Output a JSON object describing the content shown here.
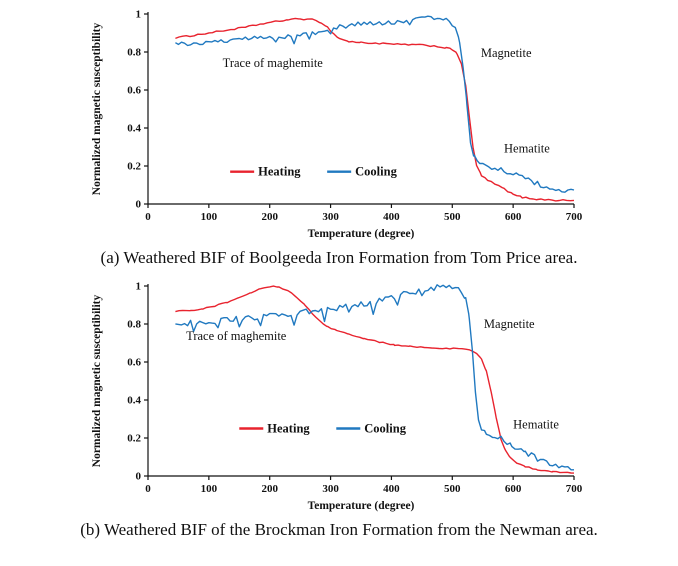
{
  "colors": {
    "heating": "#e8232e",
    "cooling": "#2079c0",
    "axis": "#111111"
  },
  "chart_data": [
    {
      "type": "line",
      "panel": "a",
      "caption": "(a) Weathered BIF of Boolgeeda Iron Formation from Tom Price area.",
      "xlabel": "Temperature (degree)",
      "ylabel": "Normalized magnetic susceptibility",
      "xlim": [
        0,
        700
      ],
      "ylim": [
        0,
        1
      ],
      "xticks": [
        0,
        100,
        200,
        300,
        400,
        500,
        600,
        700
      ],
      "yticks": [
        0,
        0.2,
        0.4,
        0.6,
        0.8,
        1
      ],
      "legend": {
        "x": 135,
        "y": 0.17,
        "items": [
          {
            "label": "Heating",
            "color": "#e8232e"
          },
          {
            "label": "Cooling",
            "color": "#2079c0"
          }
        ]
      },
      "annotations": [
        {
          "text": "Trace of maghemite",
          "x": 205,
          "y": 0.72,
          "anchor": "middle"
        },
        {
          "text": "Magnetite",
          "x": 547,
          "y": 0.775,
          "anchor": "start"
        },
        {
          "text": "Hematite",
          "x": 585,
          "y": 0.27,
          "anchor": "start"
        }
      ],
      "series": [
        {
          "name": "Heating",
          "color": "#e8232e",
          "jitter": 0.004,
          "sample_step": 6,
          "points": [
            [
              45,
              0.875
            ],
            [
              70,
              0.885
            ],
            [
              100,
              0.9
            ],
            [
              130,
              0.915
            ],
            [
              160,
              0.93
            ],
            [
              190,
              0.95
            ],
            [
              210,
              0.96
            ],
            [
              230,
              0.97
            ],
            [
              250,
              0.975
            ],
            [
              270,
              0.97
            ],
            [
              285,
              0.955
            ],
            [
              295,
              0.93
            ],
            [
              305,
              0.895
            ],
            [
              315,
              0.87
            ],
            [
              330,
              0.855
            ],
            [
              350,
              0.85
            ],
            [
              380,
              0.845
            ],
            [
              410,
              0.84
            ],
            [
              440,
              0.838
            ],
            [
              470,
              0.832
            ],
            [
              490,
              0.822
            ],
            [
              500,
              0.812
            ],
            [
              508,
              0.79
            ],
            [
              515,
              0.74
            ],
            [
              522,
              0.62
            ],
            [
              528,
              0.46
            ],
            [
              534,
              0.3
            ],
            [
              540,
              0.2
            ],
            [
              548,
              0.15
            ],
            [
              558,
              0.125
            ],
            [
              570,
              0.105
            ],
            [
              585,
              0.08
            ],
            [
              600,
              0.05
            ],
            [
              615,
              0.035
            ],
            [
              640,
              0.025
            ],
            [
              670,
              0.02
            ],
            [
              700,
              0.018
            ]
          ]
        },
        {
          "name": "Cooling",
          "color": "#2079c0",
          "jitter": 0.013,
          "sample_step": 5,
          "spikes": [
            [
              210,
              -0.03
            ],
            [
              240,
              -0.04
            ],
            [
              265,
              -0.03
            ],
            [
              300,
              -0.03
            ],
            [
              430,
              -0.025
            ]
          ],
          "points": [
            [
              45,
              0.84
            ],
            [
              80,
              0.848
            ],
            [
              120,
              0.856
            ],
            [
              160,
              0.866
            ],
            [
              200,
              0.878
            ],
            [
              240,
              0.888
            ],
            [
              270,
              0.9
            ],
            [
              290,
              0.915
            ],
            [
              310,
              0.93
            ],
            [
              340,
              0.945
            ],
            [
              370,
              0.952
            ],
            [
              400,
              0.958
            ],
            [
              420,
              0.962
            ],
            [
              440,
              0.975
            ],
            [
              455,
              0.985
            ],
            [
              470,
              0.982
            ],
            [
              485,
              0.972
            ],
            [
              495,
              0.962
            ],
            [
              505,
              0.935
            ],
            [
              512,
              0.86
            ],
            [
              518,
              0.72
            ],
            [
              524,
              0.52
            ],
            [
              530,
              0.33
            ],
            [
              536,
              0.245
            ],
            [
              545,
              0.215
            ],
            [
              560,
              0.2
            ],
            [
              580,
              0.18
            ],
            [
              600,
              0.155
            ],
            [
              615,
              0.145
            ],
            [
              630,
              0.12
            ],
            [
              645,
              0.1
            ],
            [
              660,
              0.085
            ],
            [
              675,
              0.075
            ],
            [
              700,
              0.065
            ]
          ]
        }
      ]
    },
    {
      "type": "line",
      "panel": "b",
      "caption": "(b) Weathered BIF of the Brockman Iron Formation from the Newman area.",
      "xlabel": "Temperature (degree)",
      "ylabel": "Normalized magnetic susceptibility",
      "xlim": [
        0,
        700
      ],
      "ylim": [
        0,
        1
      ],
      "xticks": [
        0,
        100,
        200,
        300,
        400,
        500,
        600,
        700
      ],
      "yticks": [
        0,
        0.2,
        0.4,
        0.6,
        0.8,
        1
      ],
      "legend": {
        "x": 150,
        "y": 0.25,
        "items": [
          {
            "label": "Heating",
            "color": "#e8232e"
          },
          {
            "label": "Cooling",
            "color": "#2079c0"
          }
        ]
      },
      "annotations": [
        {
          "text": "Trace of maghemite",
          "x": 145,
          "y": 0.715,
          "anchor": "middle"
        },
        {
          "text": "Magnetite",
          "x": 552,
          "y": 0.78,
          "anchor": "start"
        },
        {
          "text": "Hematite",
          "x": 600,
          "y": 0.25,
          "anchor": "start"
        }
      ],
      "series": [
        {
          "name": "Heating",
          "color": "#e8232e",
          "jitter": 0.003,
          "sample_step": 6,
          "points": [
            [
              45,
              0.868
            ],
            [
              70,
              0.872
            ],
            [
              90,
              0.88
            ],
            [
              110,
              0.895
            ],
            [
              130,
              0.915
            ],
            [
              150,
              0.94
            ],
            [
              170,
              0.965
            ],
            [
              185,
              0.985
            ],
            [
              200,
              0.998
            ],
            [
              215,
              0.995
            ],
            [
              230,
              0.975
            ],
            [
              245,
              0.94
            ],
            [
              258,
              0.9
            ],
            [
              270,
              0.855
            ],
            [
              282,
              0.815
            ],
            [
              295,
              0.785
            ],
            [
              310,
              0.765
            ],
            [
              330,
              0.745
            ],
            [
              355,
              0.725
            ],
            [
              380,
              0.705
            ],
            [
              405,
              0.69
            ],
            [
              430,
              0.682
            ],
            [
              460,
              0.675
            ],
            [
              490,
              0.672
            ],
            [
              510,
              0.67
            ],
            [
              528,
              0.662
            ],
            [
              540,
              0.645
            ],
            [
              548,
              0.615
            ],
            [
              556,
              0.55
            ],
            [
              564,
              0.44
            ],
            [
              572,
              0.31
            ],
            [
              580,
              0.195
            ],
            [
              588,
              0.13
            ],
            [
              596,
              0.095
            ],
            [
              606,
              0.07
            ],
            [
              620,
              0.05
            ],
            [
              640,
              0.032
            ],
            [
              665,
              0.022
            ],
            [
              700,
              0.018
            ]
          ]
        },
        {
          "name": "Cooling",
          "color": "#2079c0",
          "jitter": 0.015,
          "sample_step": 5,
          "spikes": [
            [
              75,
              -0.05
            ],
            [
              115,
              -0.04
            ],
            [
              150,
              -0.055
            ],
            [
              185,
              -0.04
            ],
            [
              240,
              -0.065
            ],
            [
              290,
              -0.05
            ],
            [
              330,
              -0.04
            ],
            [
              370,
              -0.05
            ],
            [
              410,
              -0.04
            ],
            [
              450,
              -0.03
            ]
          ],
          "points": [
            [
              45,
              0.8
            ],
            [
              70,
              0.806
            ],
            [
              100,
              0.812
            ],
            [
              130,
              0.82
            ],
            [
              160,
              0.83
            ],
            [
              190,
              0.84
            ],
            [
              220,
              0.85
            ],
            [
              250,
              0.862
            ],
            [
              280,
              0.872
            ],
            [
              310,
              0.884
            ],
            [
              340,
              0.898
            ],
            [
              365,
              0.912
            ],
            [
              385,
              0.928
            ],
            [
              405,
              0.945
            ],
            [
              425,
              0.962
            ],
            [
              445,
              0.975
            ],
            [
              465,
              0.988
            ],
            [
              480,
              0.997
            ],
            [
              495,
              1.0
            ],
            [
              505,
              0.995
            ],
            [
              515,
              0.975
            ],
            [
              522,
              0.93
            ],
            [
              528,
              0.83
            ],
            [
              533,
              0.66
            ],
            [
              538,
              0.45
            ],
            [
              543,
              0.3
            ],
            [
              548,
              0.24
            ],
            [
              556,
              0.22
            ],
            [
              570,
              0.205
            ],
            [
              585,
              0.19
            ],
            [
              598,
              0.165
            ],
            [
              608,
              0.14
            ],
            [
              620,
              0.12
            ],
            [
              635,
              0.1
            ],
            [
              650,
              0.08
            ],
            [
              665,
              0.06
            ],
            [
              680,
              0.05
            ],
            [
              700,
              0.045
            ]
          ]
        }
      ]
    }
  ]
}
